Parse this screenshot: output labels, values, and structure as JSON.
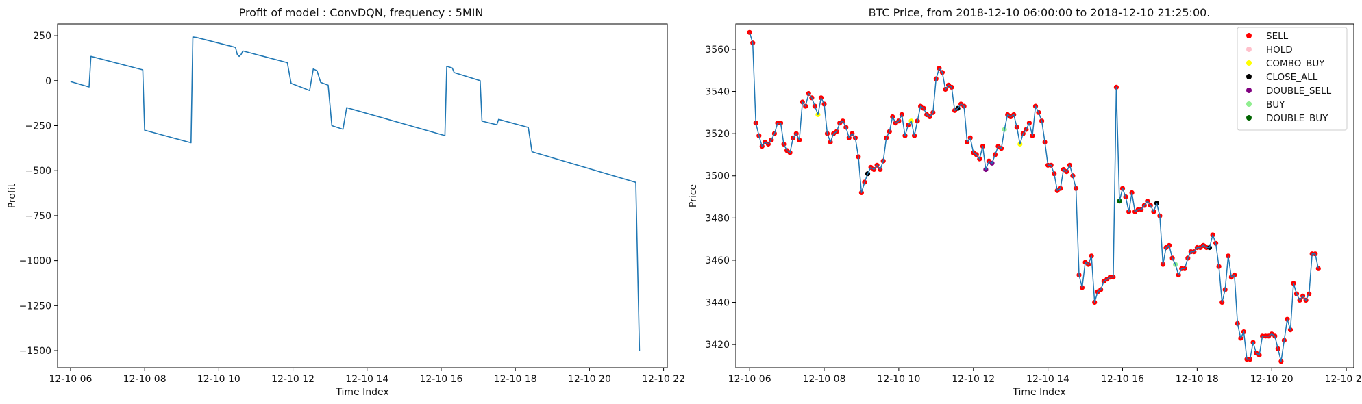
{
  "chart_data": [
    {
      "type": "line",
      "title": "Profit of model : ConvDQN, frequency : 5MIN",
      "xlabel": "Time Index",
      "ylabel": "Profit",
      "x_ticks": [
        "12-10 06",
        "12-10 08",
        "12-10 10",
        "12-10 12",
        "12-10 14",
        "12-10 16",
        "12-10 18",
        "12-10 20",
        "12-10 22"
      ],
      "x_tick_values": [
        6,
        8,
        10,
        12,
        14,
        16,
        18,
        20,
        22
      ],
      "y_ticks": [
        "250",
        "0",
        "−250",
        "−500",
        "−750",
        "−1000",
        "−1250",
        "−1500"
      ],
      "y_tick_values": [
        250,
        0,
        -250,
        -500,
        -750,
        -1000,
        -1250,
        -1500
      ],
      "xlim": [
        5.65,
        22.1
      ],
      "ylim": [
        -1595,
        315
      ],
      "grid": false,
      "series": [
        {
          "color": "#1f77b4",
          "points": [
            [
              6.0,
              -5
            ],
            [
              6.5,
              -35
            ],
            [
              6.55,
              135
            ],
            [
              7.95,
              60
            ],
            [
              8.0,
              -275
            ],
            [
              9.25,
              -345
            ],
            [
              9.3,
              243
            ],
            [
              9.4,
              240
            ],
            [
              10.45,
              185
            ],
            [
              10.5,
              145
            ],
            [
              10.55,
              135
            ],
            [
              10.6,
              145
            ],
            [
              10.65,
              165
            ],
            [
              11.85,
              100
            ],
            [
              11.95,
              -15
            ],
            [
              12.45,
              -55
            ],
            [
              12.55,
              65
            ],
            [
              12.65,
              55
            ],
            [
              12.75,
              -10
            ],
            [
              12.95,
              -25
            ],
            [
              13.05,
              -250
            ],
            [
              13.35,
              -270
            ],
            [
              13.45,
              -150
            ],
            [
              16.1,
              -305
            ],
            [
              16.15,
              80
            ],
            [
              16.3,
              70
            ],
            [
              16.35,
              45
            ],
            [
              17.05,
              0
            ],
            [
              17.1,
              -225
            ],
            [
              17.5,
              -245
            ],
            [
              17.55,
              -215
            ],
            [
              18.35,
              -260
            ],
            [
              18.45,
              -395
            ],
            [
              21.25,
              -565
            ],
            [
              21.35,
              -1500
            ]
          ]
        }
      ]
    },
    {
      "type": "line",
      "title": "BTC Price, from 2018-12-10 06:00:00 to 2018-12-10 21:25:00.",
      "xlabel": "Time Index",
      "ylabel": "Price",
      "x_ticks": [
        "12-10 06",
        "12-10 08",
        "12-10 10",
        "12-10 12",
        "12-10 14",
        "12-10 16",
        "12-10 18",
        "12-10 20",
        "12-10 22"
      ],
      "x_tick_values": [
        6,
        8,
        10,
        12,
        14,
        16,
        18,
        20,
        22
      ],
      "y_ticks": [
        "3560",
        "3540",
        "3520",
        "3500",
        "3480",
        "3460",
        "3440",
        "3420"
      ],
      "y_tick_values": [
        3560,
        3540,
        3520,
        3500,
        3480,
        3460,
        3440,
        3420
      ],
      "xlim": [
        5.63,
        22.2
      ],
      "ylim": [
        3409,
        3572
      ],
      "grid": false,
      "legend_placement": "top-right",
      "line_color": "#1f77b4",
      "legend": [
        {
          "label": "SELL",
          "color": "#ff0000"
        },
        {
          "label": "HOLD",
          "color": "#ffc0cb"
        },
        {
          "label": "COMBO_BUY",
          "color": "#ffff00"
        },
        {
          "label": "CLOSE_ALL",
          "color": "#000000"
        },
        {
          "label": "DOUBLE_SELL",
          "color": "#800080"
        },
        {
          "label": "BUY",
          "color": "#90ee90"
        },
        {
          "label": "DOUBLE_BUY",
          "color": "#006400"
        }
      ],
      "prices": [
        3568,
        3563,
        3525,
        3519,
        3514,
        3516,
        3515,
        3517,
        3520,
        3525,
        3525,
        3515,
        3512,
        3511,
        3518,
        3520,
        3517,
        3535,
        3533,
        3539,
        3537,
        3533,
        3529,
        3537,
        3534,
        3520,
        3516,
        3520,
        3521,
        3525,
        3526,
        3523,
        3518,
        3520,
        3518,
        3509,
        3492,
        3497,
        3501,
        3504,
        3503,
        3505,
        3503,
        3507,
        3518,
        3521,
        3528,
        3525,
        3526,
        3529,
        3519,
        3524,
        3526,
        3519,
        3526,
        3533,
        3532,
        3529,
        3528,
        3530,
        3546,
        3551,
        3549,
        3541,
        3543,
        3542,
        3531,
        3532,
        3534,
        3533,
        3516,
        3518,
        3511,
        3510,
        3508,
        3514,
        3503,
        3507,
        3506,
        3510,
        3514,
        3513,
        3522,
        3529,
        3528,
        3529,
        3523,
        3515,
        3520,
        3522,
        3525,
        3519,
        3533,
        3530,
        3526,
        3516,
        3505,
        3505,
        3501,
        3493,
        3494,
        3503,
        3502,
        3505,
        3500,
        3494,
        3453,
        3447,
        3459,
        3458,
        3462,
        3440,
        3445,
        3446,
        3450,
        3451,
        3452,
        3452,
        3542,
        3488,
        3494,
        3490,
        3483,
        3492,
        3483,
        3484,
        3484,
        3486,
        3488,
        3486,
        3483,
        3487,
        3481,
        3458,
        3466,
        3467,
        3461,
        3458,
        3453,
        3456,
        3456,
        3461,
        3464,
        3464,
        3466,
        3466,
        3467,
        3466,
        3466,
        3472,
        3468,
        3457,
        3440,
        3446,
        3462,
        3452,
        3453,
        3430,
        3423,
        3426,
        3413,
        3413,
        3421,
        3416,
        3415,
        3424,
        3424,
        3424,
        3425,
        3424,
        3418,
        3412,
        3422,
        3432,
        3427,
        3449,
        3444,
        3441,
        3443,
        3441,
        3444,
        3463,
        3463,
        3456
      ],
      "actions": [
        "SELL",
        "SELL",
        "SELL",
        "SELL",
        "SELL",
        "SELL",
        "SELL",
        "SELL",
        "SELL",
        "SELL",
        "SELL",
        "SELL",
        "SELL",
        "SELL",
        "SELL",
        "SELL",
        "SELL",
        "SELL",
        "SELL",
        "SELL",
        "SELL",
        "SELL",
        "COMBO_BUY",
        "SELL",
        "SELL",
        "SELL",
        "SELL",
        "SELL",
        "SELL",
        "SELL",
        "SELL",
        "SELL",
        "SELL",
        "SELL",
        "SELL",
        "SELL",
        "SELL",
        "SELL",
        "CLOSE_ALL",
        "SELL",
        "SELL",
        "SELL",
        "SELL",
        "SELL",
        "SELL",
        "SELL",
        "SELL",
        "SELL",
        "SELL",
        "SELL",
        "SELL",
        "SELL",
        "COMBO_BUY",
        "SELL",
        "SELL",
        "SELL",
        "SELL",
        "SELL",
        "SELL",
        "SELL",
        "SELL",
        "SELL",
        "SELL",
        "SELL",
        "SELL",
        "SELL",
        "SELL",
        "CLOSE_ALL",
        "SELL",
        "SELL",
        "SELL",
        "SELL",
        "SELL",
        "SELL",
        "SELL",
        "SELL",
        "DOUBLE_SELL",
        "SELL",
        "DOUBLE_SELL",
        "SELL",
        "SELL",
        "SELL",
        "BUY",
        "SELL",
        "SELL",
        "SELL",
        "SELL",
        "COMBO_BUY",
        "SELL",
        "SELL",
        "SELL",
        "SELL",
        "SELL",
        "SELL",
        "SELL",
        "SELL",
        "SELL",
        "SELL",
        "SELL",
        "SELL",
        "SELL",
        "SELL",
        "SELL",
        "SELL",
        "SELL",
        "SELL",
        "SELL",
        "SELL",
        "SELL",
        "SELL",
        "SELL",
        "SELL",
        "SELL",
        "SELL",
        "SELL",
        "SELL",
        "SELL",
        "SELL",
        "SELL",
        "DOUBLE_BUY",
        "SELL",
        "SELL",
        "SELL",
        "SELL",
        "SELL",
        "SELL",
        "SELL",
        "SELL",
        "SELL",
        "SELL",
        "SELL",
        "CLOSE_ALL",
        "SELL",
        "SELL",
        "SELL",
        "SELL",
        "SELL",
        "BUY",
        "SELL",
        "SELL",
        "SELL",
        "SELL",
        "SELL",
        "SELL",
        "SELL",
        "SELL",
        "SELL",
        "SELL",
        "CLOSE_ALL",
        "SELL",
        "SELL",
        "SELL",
        "SELL",
        "SELL",
        "SELL",
        "SELL",
        "SELL",
        "SELL",
        "SELL",
        "SELL",
        "SELL",
        "SELL",
        "SELL",
        "SELL",
        "SELL",
        "SELL",
        "SELL",
        "SELL",
        "SELL",
        "SELL",
        "SELL",
        "SELL",
        "SELL",
        "SELL",
        "SELL",
        "SELL",
        "SELL",
        "SELL",
        "SELL",
        "SELL",
        "SELL",
        "SELL",
        "SELL",
        "SELL"
      ]
    }
  ]
}
